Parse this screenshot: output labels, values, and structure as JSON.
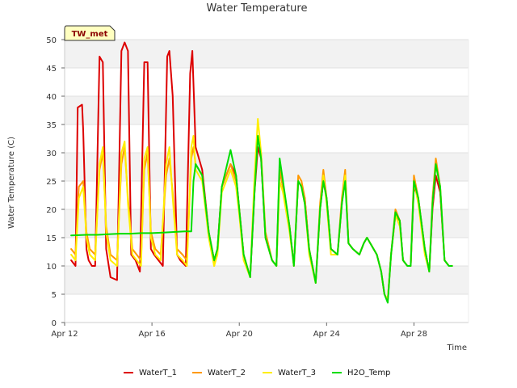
{
  "chart_data": {
    "type": "line",
    "title": "Water Temperature",
    "xlabel": "Time",
    "ylabel": "Water Temperature (C)",
    "site_label": "TW_met",
    "x_unit": "day of April",
    "xlim": [
      12,
      30.5
    ],
    "ylim": [
      0,
      50
    ],
    "yticks": [
      0,
      5,
      10,
      15,
      20,
      25,
      30,
      35,
      40,
      45,
      50
    ],
    "xticks": [
      {
        "value": 12,
        "label": "Apr 12"
      },
      {
        "value": 16,
        "label": "Apr 16"
      },
      {
        "value": 20,
        "label": "Apr 20"
      },
      {
        "value": 24,
        "label": "Apr 24"
      },
      {
        "value": 28,
        "label": "Apr 28"
      }
    ],
    "grid": "horizontal bands",
    "legend_position": "bottom",
    "series": [
      {
        "name": "WaterT_1",
        "color": "#dd0000",
        "x": [
          12.3,
          12.5,
          12.6,
          12.8,
          12.85,
          13.0,
          13.1,
          13.25,
          13.4,
          13.6,
          13.75,
          13.9,
          14.1,
          14.4,
          14.6,
          14.75,
          14.9,
          15.05,
          15.25,
          15.45,
          15.65,
          15.8,
          15.95,
          16.1,
          16.3,
          16.5,
          16.7,
          16.8,
          16.95,
          17.15,
          17.3,
          17.55,
          17.75,
          17.85,
          18.0,
          18.3,
          18.6,
          18.85,
          19.0,
          19.2,
          19.6,
          19.85,
          20.0,
          20.2,
          20.5,
          20.7,
          20.85,
          21.0,
          21.2,
          21.5,
          21.7,
          21.85,
          22.0,
          22.3,
          22.5,
          22.7,
          22.85,
          23.0,
          23.2,
          23.5,
          23.7,
          23.85,
          24.0,
          24.2,
          24.5,
          24.7,
          24.85,
          25.0,
          25.2,
          25.5,
          25.7,
          25.85,
          26.0,
          26.3,
          26.5,
          26.65,
          26.8,
          26.95,
          27.15,
          27.35,
          27.5,
          27.7,
          27.85,
          28.0,
          28.2,
          28.5,
          28.7,
          28.85,
          29.0,
          29.2,
          29.4,
          29.6,
          29.75
        ],
        "values": [
          11,
          10,
          38,
          38.5,
          34,
          13,
          11,
          10,
          10,
          47,
          46,
          13,
          8,
          7.5,
          48,
          49.5,
          48,
          12,
          11,
          9,
          46,
          46,
          13,
          12,
          11,
          10,
          47,
          48,
          40,
          12,
          11,
          10,
          44,
          48,
          31,
          27,
          16,
          11,
          13,
          24,
          28,
          26,
          20,
          12,
          8,
          23,
          31,
          29,
          15,
          11,
          10,
          27,
          24,
          17,
          10,
          25,
          24,
          22,
          13,
          7,
          20,
          25,
          22,
          13,
          12,
          21,
          26,
          14,
          13,
          12,
          14,
          15,
          14,
          12,
          9,
          5,
          4,
          12,
          19,
          18,
          11,
          10,
          10,
          24,
          22,
          13,
          9,
          20,
          26,
          23,
          11,
          10,
          10
        ]
      },
      {
        "name": "WaterT_2",
        "color": "#ff9900",
        "x": [
          12.3,
          12.5,
          12.65,
          12.85,
          13.0,
          13.15,
          13.4,
          13.6,
          13.75,
          13.9,
          14.1,
          14.4,
          14.6,
          14.75,
          14.9,
          15.1,
          15.3,
          15.5,
          15.65,
          15.8,
          15.95,
          16.15,
          16.4,
          16.65,
          16.8,
          16.95,
          17.15,
          17.4,
          17.6,
          17.8,
          17.9,
          18.0,
          18.3,
          18.6,
          18.85,
          19.0,
          19.2,
          19.6,
          19.85,
          20.0,
          20.2,
          20.5,
          20.7,
          20.85,
          21.0,
          21.2,
          21.5,
          21.7,
          21.85,
          22.0,
          22.3,
          22.5,
          22.7,
          22.85,
          23.0,
          23.2,
          23.5,
          23.7,
          23.85,
          24.0,
          24.2,
          24.5,
          24.7,
          24.85,
          25.0,
          25.2,
          25.5,
          25.7,
          25.85,
          26.0,
          26.3,
          26.5,
          26.65,
          26.8,
          26.95,
          27.15,
          27.35,
          27.5,
          27.7,
          27.85,
          28.0,
          28.2,
          28.5,
          28.7,
          28.85,
          29.0,
          29.2,
          29.4,
          29.6,
          29.75
        ],
        "values": [
          13,
          12,
          24,
          25,
          16,
          13,
          12,
          27,
          30,
          17,
          12,
          11,
          28,
          31,
          22,
          13,
          12,
          11,
          27,
          30,
          16,
          13,
          12,
          26,
          29,
          23,
          13,
          12,
          11,
          29,
          31,
          28,
          26,
          16,
          10,
          13,
          24,
          28,
          25,
          20,
          12,
          8,
          24,
          33,
          30,
          16,
          11,
          10,
          27,
          24,
          17,
          10,
          26,
          25,
          22,
          13,
          7,
          21,
          27,
          22,
          13,
          12,
          22,
          27,
          14,
          13,
          12,
          14,
          15,
          14,
          12,
          9,
          5,
          4,
          12,
          20,
          18,
          11,
          10,
          10,
          26,
          22,
          13,
          9,
          22,
          29,
          24,
          11,
          10,
          10
        ]
      },
      {
        "name": "WaterT_3",
        "color": "#ffee00",
        "x": [
          12.3,
          12.5,
          12.65,
          12.85,
          13.0,
          13.15,
          13.4,
          13.6,
          13.75,
          13.9,
          14.1,
          14.4,
          14.6,
          14.75,
          14.9,
          15.1,
          15.3,
          15.5,
          15.65,
          15.8,
          15.95,
          16.15,
          16.4,
          16.65,
          16.8,
          16.95,
          17.15,
          17.4,
          17.6,
          17.8,
          17.9,
          18.0,
          18.3,
          18.6,
          18.85,
          19.0,
          19.2,
          19.6,
          19.85,
          20.0,
          20.2,
          20.5,
          20.7,
          20.85,
          21.0,
          21.2,
          21.5,
          21.7,
          21.85,
          22.0,
          22.3,
          22.5,
          22.7,
          22.85,
          23.0,
          23.2,
          23.5,
          23.7,
          23.85,
          24.0,
          24.2,
          24.5,
          24.7,
          24.85,
          25.0,
          25.2,
          25.5,
          25.7,
          25.85,
          26.0,
          26.3,
          26.5,
          26.65,
          26.8,
          26.95,
          27.15,
          27.35,
          27.5,
          27.7,
          27.85,
          28.0,
          28.2,
          28.5,
          28.7,
          28.85,
          29.0,
          29.2,
          29.4,
          29.6,
          29.75
        ],
        "values": [
          12,
          11,
          22,
          24,
          15,
          12,
          11,
          28,
          31,
          16,
          11,
          10,
          30,
          32,
          21,
          12,
          11,
          10,
          29,
          31,
          15,
          12,
          11,
          28,
          31,
          22,
          12,
          11,
          10,
          31,
          33,
          27,
          25,
          15,
          10,
          12,
          23,
          27,
          24,
          19,
          11,
          8,
          26,
          36,
          30,
          15,
          11,
          10,
          25,
          23,
          16,
          10,
          25,
          24,
          21,
          12,
          7,
          20,
          26,
          21,
          12,
          12,
          21,
          26,
          14,
          13,
          12,
          14,
          15,
          14,
          12,
          9,
          5,
          4,
          12,
          19,
          17,
          11,
          10,
          10,
          25,
          21,
          12,
          9,
          21,
          28,
          24,
          11,
          10,
          10
        ]
      },
      {
        "name": "H2O_Temp",
        "color": "#00dd00",
        "x": [
          12.3,
          13.0,
          13.5,
          14.0,
          14.5,
          15.0,
          15.5,
          16.0,
          16.5,
          17.0,
          17.5,
          17.8,
          17.9,
          18.0,
          18.3,
          18.6,
          18.85,
          19.0,
          19.2,
          19.6,
          19.85,
          20.0,
          20.2,
          20.5,
          20.7,
          20.85,
          21.0,
          21.2,
          21.5,
          21.7,
          21.85,
          22.0,
          22.3,
          22.5,
          22.7,
          22.85,
          23.0,
          23.2,
          23.5,
          23.7,
          23.85,
          24.0,
          24.2,
          24.5,
          24.7,
          24.85,
          25.0,
          25.2,
          25.5,
          25.7,
          25.85,
          26.0,
          26.3,
          26.5,
          26.65,
          26.8,
          26.95,
          27.15,
          27.35,
          27.5,
          27.7,
          27.85,
          28.0,
          28.2,
          28.5,
          28.7,
          28.85,
          29.0,
          29.2,
          29.4,
          29.6,
          29.75
        ],
        "values": [
          15.4,
          15.5,
          15.5,
          15.6,
          15.7,
          15.7,
          15.8,
          15.8,
          15.9,
          16.0,
          16.1,
          16.1,
          25.0,
          28.0,
          26.0,
          16.0,
          11.0,
          13.0,
          24.0,
          30.5,
          26.0,
          20.0,
          12.0,
          8.0,
          23.0,
          33.0,
          29.0,
          15.0,
          11.0,
          10.0,
          29.0,
          25.0,
          17.0,
          10.0,
          25.0,
          24.0,
          21.0,
          13.0,
          7.0,
          20.0,
          25.0,
          22.0,
          13.0,
          12.0,
          21.0,
          25.0,
          14.0,
          13.0,
          12.0,
          14.0,
          15.0,
          14.0,
          12.0,
          9.0,
          5.0,
          3.5,
          12.0,
          19.5,
          18.0,
          11.0,
          10.0,
          10.0,
          25.0,
          22.0,
          13.0,
          9.0,
          21.0,
          28.0,
          24.0,
          11.0,
          10.0,
          10.0
        ]
      }
    ]
  }
}
